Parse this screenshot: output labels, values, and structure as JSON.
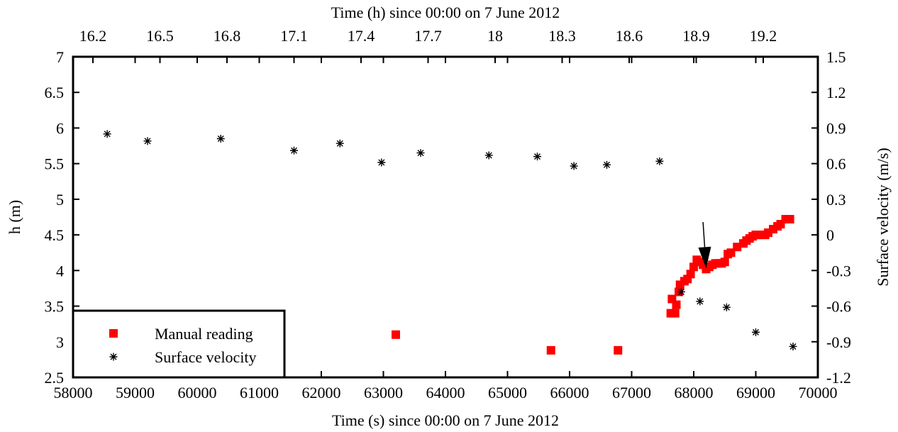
{
  "chart_data": {
    "type": "scatter",
    "title": "",
    "xlabel": "Time (s) since 00:00 on 7 June 2012",
    "x2label": "Time (h) since 00:00 on 7 June 2012",
    "ylabel": "h (m)",
    "y2label": "Surface velocity (m/s)",
    "xlim": [
      58000,
      70000
    ],
    "ylim": [
      2.5,
      7
    ],
    "y2lim": [
      -1.2,
      1.5
    ],
    "xticks": [
      "58000",
      "59000",
      "60000",
      "61000",
      "62000",
      "63000",
      "64000",
      "65000",
      "66000",
      "67000",
      "68000",
      "69000",
      "70000"
    ],
    "yticks": [
      "2.5",
      "3",
      "3.5",
      "4",
      "4.5",
      "5",
      "5.5",
      "6",
      "6.5",
      "7"
    ],
    "y2ticks": [
      "-1.2",
      "-0.9",
      "-0.6",
      "-0.3",
      "0",
      "0.3",
      "0.6",
      "0.9",
      "1.2",
      "1.5"
    ],
    "x2ticks": [
      "16.2",
      "16.5",
      "16.8",
      "17.1",
      "17.4",
      "17.7",
      "18",
      "18.3",
      "18.6",
      "18.9",
      "19.2"
    ],
    "grid": false,
    "legend_position": "bottom-left",
    "series": [
      {
        "name": "Manual reading",
        "axis": "left",
        "marker": "square",
        "color": "#ff0000",
        "points": [
          [
            63200,
            3.1
          ],
          [
            65700,
            2.88
          ],
          [
            66780,
            2.88
          ],
          [
            67630,
            3.4
          ],
          [
            67700,
            3.4
          ],
          [
            67650,
            3.6
          ],
          [
            67720,
            3.52
          ],
          [
            67760,
            3.7
          ],
          [
            67780,
            3.8
          ],
          [
            67850,
            3.85
          ],
          [
            67900,
            3.88
          ],
          [
            67950,
            3.95
          ],
          [
            68000,
            4.05
          ],
          [
            68050,
            4.15
          ],
          [
            68100,
            4.12
          ],
          [
            68150,
            4.08
          ],
          [
            68200,
            4.02
          ],
          [
            68250,
            4.05
          ],
          [
            68300,
            4.08
          ],
          [
            68350,
            4.1
          ],
          [
            68400,
            4.1
          ],
          [
            68450,
            4.1
          ],
          [
            68500,
            4.12
          ],
          [
            68550,
            4.23
          ],
          [
            68600,
            4.25
          ],
          [
            68700,
            4.33
          ],
          [
            68800,
            4.38
          ],
          [
            68850,
            4.42
          ],
          [
            68900,
            4.45
          ],
          [
            68950,
            4.48
          ],
          [
            69000,
            4.5
          ],
          [
            69050,
            4.5
          ],
          [
            69100,
            4.5
          ],
          [
            69150,
            4.5
          ],
          [
            69200,
            4.53
          ],
          [
            69280,
            4.58
          ],
          [
            69350,
            4.62
          ],
          [
            69400,
            4.65
          ],
          [
            69480,
            4.72
          ],
          [
            69550,
            4.72
          ]
        ]
      },
      {
        "name": "Surface velocity",
        "axis": "right",
        "marker": "star",
        "color": "#000000",
        "points": [
          [
            58550,
            0.85
          ],
          [
            59200,
            0.79
          ],
          [
            60380,
            0.81
          ],
          [
            61560,
            0.71
          ],
          [
            62300,
            0.77
          ],
          [
            62970,
            0.61
          ],
          [
            63600,
            0.69
          ],
          [
            64700,
            0.67
          ],
          [
            65480,
            0.66
          ],
          [
            66070,
            0.58
          ],
          [
            66600,
            0.59
          ],
          [
            67450,
            0.62
          ],
          [
            67800,
            -0.48
          ],
          [
            68100,
            -0.56
          ],
          [
            68530,
            -0.61
          ],
          [
            69000,
            -0.82
          ],
          [
            69600,
            -0.94
          ]
        ]
      }
    ],
    "annotations": [
      {
        "type": "arrow",
        "x_from": 68150,
        "y_from": 4.68,
        "x_to": 68200,
        "y_to": 4.03
      }
    ]
  }
}
